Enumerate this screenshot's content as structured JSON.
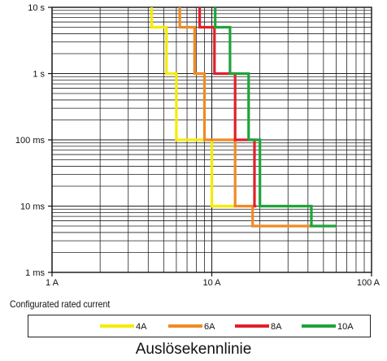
{
  "chart_data": {
    "type": "line",
    "title": "",
    "xlabel": "Configurated rated current",
    "ylabel": "",
    "x_scale": "log",
    "y_scale": "log",
    "xlim": [
      1,
      100
    ],
    "ylim": [
      0.001,
      10
    ],
    "x_ticks": [
      {
        "value": 1,
        "label": "1 A"
      },
      {
        "value": 10,
        "label": "10 A"
      },
      {
        "value": 100,
        "label": "100 A"
      }
    ],
    "y_ticks": [
      {
        "value": 10,
        "label": "10 s"
      },
      {
        "value": 1,
        "label": "1 s"
      },
      {
        "value": 0.1,
        "label": "100 ms"
      },
      {
        "value": 0.01,
        "label": "10 ms"
      },
      {
        "value": 0.001,
        "label": "1 ms"
      }
    ],
    "grid": true,
    "legend_position": "bottom",
    "caption": "Auslösekennlinie",
    "series": [
      {
        "name": "4A",
        "color": "#f5ec00",
        "points": [
          [
            4.2,
            10
          ],
          [
            4.2,
            5
          ],
          [
            5.2,
            5
          ],
          [
            5.2,
            1
          ],
          [
            6,
            1
          ],
          [
            6,
            0.1
          ],
          [
            10,
            0.1
          ],
          [
            10,
            0.01
          ],
          [
            14,
            0.01
          ]
        ]
      },
      {
        "name": "6A",
        "color": "#f08a24",
        "points": [
          [
            6.3,
            10
          ],
          [
            6.3,
            5
          ],
          [
            7.8,
            5
          ],
          [
            7.8,
            1
          ],
          [
            9,
            1
          ],
          [
            9,
            0.1
          ],
          [
            14,
            0.1
          ],
          [
            14,
            0.01
          ],
          [
            18,
            0.01
          ],
          [
            18,
            0.005
          ],
          [
            42,
            0.005
          ]
        ]
      },
      {
        "name": "8A",
        "color": "#e1202a",
        "points": [
          [
            8.4,
            10
          ],
          [
            8.4,
            5
          ],
          [
            10.4,
            5
          ],
          [
            10.4,
            1
          ],
          [
            14,
            1
          ],
          [
            14,
            0.1
          ],
          [
            18.5,
            0.1
          ],
          [
            18.5,
            0.01
          ],
          [
            19,
            0.01
          ]
        ]
      },
      {
        "name": "10A",
        "color": "#1fa33a",
        "points": [
          [
            10.5,
            10
          ],
          [
            10.5,
            5
          ],
          [
            13,
            5
          ],
          [
            13,
            1
          ],
          [
            17,
            1
          ],
          [
            17,
            0.1
          ],
          [
            20,
            0.1
          ],
          [
            20,
            0.01
          ],
          [
            42,
            0.01
          ],
          [
            42,
            0.005
          ],
          [
            60,
            0.005
          ]
        ]
      }
    ]
  }
}
